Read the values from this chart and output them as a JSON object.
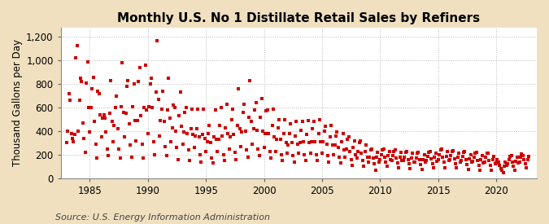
{
  "title": "Monthly U.S. No 1 Distillate Retail Sales by Refiners",
  "ylabel": "Thousand Gallons per Day",
  "source": "Source: U.S. Energy Information Administration",
  "figure_bg": "#f0e0c0",
  "plot_bg": "#ffffff",
  "marker_color": "#cc0000",
  "xlim": [
    1982.5,
    2023.5
  ],
  "ylim": [
    0,
    1280
  ],
  "yticks": [
    0,
    200,
    400,
    600,
    800,
    1000,
    1200
  ],
  "ytick_labels": [
    "0",
    "200",
    "400",
    "600",
    "800",
    "1,000",
    "1,200"
  ],
  "xticks": [
    1985,
    1990,
    1995,
    2000,
    2005,
    2010,
    2015,
    2020
  ],
  "title_fontsize": 11,
  "label_fontsize": 8.5,
  "source_fontsize": 8,
  "grid_color": "#bbbbbb",
  "grid_style": ":",
  "marker_size": 9,
  "data_points": [
    [
      1983.0,
      300
    ],
    [
      1983.1,
      400
    ],
    [
      1983.2,
      720
    ],
    [
      1983.3,
      660
    ],
    [
      1983.4,
      380
    ],
    [
      1983.5,
      340
    ],
    [
      1983.6,
      310
    ],
    [
      1983.7,
      370
    ],
    [
      1983.8,
      1020
    ],
    [
      1983.9,
      1130
    ],
    [
      1984.0,
      400
    ],
    [
      1984.1,
      660
    ],
    [
      1984.2,
      850
    ],
    [
      1984.3,
      820
    ],
    [
      1984.4,
      470
    ],
    [
      1984.5,
      340
    ],
    [
      1984.6,
      220
    ],
    [
      1984.7,
      810
    ],
    [
      1984.8,
      990
    ],
    [
      1984.9,
      600
    ],
    [
      1985.0,
      390
    ],
    [
      1985.1,
      600
    ],
    [
      1985.2,
      760
    ],
    [
      1985.3,
      860
    ],
    [
      1985.4,
      480
    ],
    [
      1985.5,
      290
    ],
    [
      1985.6,
      170
    ],
    [
      1985.7,
      740
    ],
    [
      1985.8,
      720
    ],
    [
      1985.9,
      540
    ],
    [
      1986.0,
      350
    ],
    [
      1986.1,
      510
    ],
    [
      1986.2,
      540
    ],
    [
      1986.3,
      510
    ],
    [
      1986.4,
      390
    ],
    [
      1986.5,
      250
    ],
    [
      1986.6,
      190
    ],
    [
      1986.7,
      550
    ],
    [
      1986.8,
      830
    ],
    [
      1986.9,
      480
    ],
    [
      1987.0,
      310
    ],
    [
      1987.1,
      450
    ],
    [
      1987.2,
      600
    ],
    [
      1987.3,
      700
    ],
    [
      1987.4,
      420
    ],
    [
      1987.5,
      250
    ],
    [
      1987.6,
      170
    ],
    [
      1987.7,
      610
    ],
    [
      1987.8,
      980
    ],
    [
      1987.9,
      560
    ],
    [
      1988.0,
      350
    ],
    [
      1988.1,
      550
    ],
    [
      1988.2,
      780
    ],
    [
      1988.3,
      830
    ],
    [
      1988.4,
      460
    ],
    [
      1988.5,
      280
    ],
    [
      1988.6,
      180
    ],
    [
      1988.7,
      610
    ],
    [
      1988.8,
      800
    ],
    [
      1988.9,
      490
    ],
    [
      1989.0,
      320
    ],
    [
      1989.1,
      490
    ],
    [
      1989.2,
      820
    ],
    [
      1989.3,
      940
    ],
    [
      1989.4,
      530
    ],
    [
      1989.5,
      290
    ],
    [
      1989.6,
      170
    ],
    [
      1989.7,
      600
    ],
    [
      1989.8,
      960
    ],
    [
      1989.9,
      580
    ],
    [
      1990.0,
      380
    ],
    [
      1990.1,
      610
    ],
    [
      1990.2,
      800
    ],
    [
      1990.3,
      850
    ],
    [
      1990.4,
      600
    ],
    [
      1990.5,
      310
    ],
    [
      1990.6,
      200
    ],
    [
      1990.7,
      730
    ],
    [
      1990.8,
      1170
    ],
    [
      1990.9,
      670
    ],
    [
      1991.0,
      360
    ],
    [
      1991.1,
      490
    ],
    [
      1991.2,
      590
    ],
    [
      1991.3,
      740
    ],
    [
      1991.4,
      480
    ],
    [
      1991.5,
      270
    ],
    [
      1991.6,
      190
    ],
    [
      1991.7,
      580
    ],
    [
      1991.8,
      850
    ],
    [
      1991.9,
      510
    ],
    [
      1992.0,
      310
    ],
    [
      1992.1,
      430
    ],
    [
      1992.2,
      620
    ],
    [
      1992.3,
      600
    ],
    [
      1992.4,
      400
    ],
    [
      1992.5,
      260
    ],
    [
      1992.6,
      160
    ],
    [
      1992.7,
      530
    ],
    [
      1992.8,
      730
    ],
    [
      1992.9,
      440
    ],
    [
      1993.0,
      290
    ],
    [
      1993.1,
      390
    ],
    [
      1993.2,
      560
    ],
    [
      1993.3,
      600
    ],
    [
      1993.4,
      380
    ],
    [
      1993.5,
      240
    ],
    [
      1993.6,
      150
    ],
    [
      1993.7,
      420
    ],
    [
      1993.8,
      590
    ],
    [
      1993.9,
      370
    ],
    [
      1994.0,
      260
    ],
    [
      1994.1,
      360
    ],
    [
      1994.2,
      420
    ],
    [
      1994.3,
      590
    ],
    [
      1994.4,
      350
    ],
    [
      1994.5,
      200
    ],
    [
      1994.6,
      140
    ],
    [
      1994.7,
      370
    ],
    [
      1994.8,
      590
    ],
    [
      1994.9,
      340
    ],
    [
      1995.0,
      230
    ],
    [
      1995.1,
      310
    ],
    [
      1995.2,
      380
    ],
    [
      1995.3,
      450
    ],
    [
      1995.4,
      300
    ],
    [
      1995.5,
      170
    ],
    [
      1995.6,
      130
    ],
    [
      1995.7,
      350
    ],
    [
      1995.8,
      580
    ],
    [
      1995.9,
      330
    ],
    [
      1996.0,
      230
    ],
    [
      1996.1,
      330
    ],
    [
      1996.2,
      450
    ],
    [
      1996.3,
      600
    ],
    [
      1996.4,
      360
    ],
    [
      1996.5,
      200
    ],
    [
      1996.6,
      150
    ],
    [
      1996.7,
      430
    ],
    [
      1996.8,
      630
    ],
    [
      1996.9,
      380
    ],
    [
      1997.0,
      250
    ],
    [
      1997.1,
      350
    ],
    [
      1997.2,
      500
    ],
    [
      1997.3,
      590
    ],
    [
      1997.4,
      370
    ],
    [
      1997.5,
      220
    ],
    [
      1997.6,
      160
    ],
    [
      1997.7,
      450
    ],
    [
      1997.8,
      760
    ],
    [
      1997.9,
      420
    ],
    [
      1998.0,
      270
    ],
    [
      1998.1,
      390
    ],
    [
      1998.2,
      560
    ],
    [
      1998.3,
      630
    ],
    [
      1998.4,
      400
    ],
    [
      1998.5,
      240
    ],
    [
      1998.6,
      180
    ],
    [
      1998.7,
      520
    ],
    [
      1998.8,
      830
    ],
    [
      1998.9,
      480
    ],
    [
      1999.0,
      290
    ],
    [
      1999.1,
      420
    ],
    [
      1999.2,
      580
    ],
    [
      1999.3,
      640
    ],
    [
      1999.4,
      410
    ],
    [
      1999.5,
      250
    ],
    [
      1999.6,
      190
    ],
    [
      1999.7,
      520
    ],
    [
      1999.8,
      680
    ],
    [
      1999.9,
      400
    ],
    [
      2000.0,
      260
    ],
    [
      2000.1,
      380
    ],
    [
      2000.2,
      570
    ],
    [
      2000.3,
      580
    ],
    [
      2000.4,
      380
    ],
    [
      2000.5,
      230
    ],
    [
      2000.6,
      170
    ],
    [
      2000.7,
      450
    ],
    [
      2000.8,
      590
    ],
    [
      2000.9,
      350
    ],
    [
      2001.0,
      230
    ],
    [
      2001.1,
      330
    ],
    [
      2001.2,
      430
    ],
    [
      2001.3,
      500
    ],
    [
      2001.4,
      330
    ],
    [
      2001.5,
      200
    ],
    [
      2001.6,
      150
    ],
    [
      2001.7,
      380
    ],
    [
      2001.8,
      500
    ],
    [
      2001.9,
      300
    ],
    [
      2002.0,
      210
    ],
    [
      2002.1,
      280
    ],
    [
      2002.2,
      380
    ],
    [
      2002.3,
      460
    ],
    [
      2002.4,
      300
    ],
    [
      2002.5,
      190
    ],
    [
      2002.6,
      140
    ],
    [
      2002.7,
      360
    ],
    [
      2002.8,
      480
    ],
    [
      2002.9,
      290
    ],
    [
      2003.0,
      210
    ],
    [
      2003.1,
      300
    ],
    [
      2003.2,
      410
    ],
    [
      2003.3,
      480
    ],
    [
      2003.4,
      310
    ],
    [
      2003.5,
      200
    ],
    [
      2003.6,
      150
    ],
    [
      2003.7,
      370
    ],
    [
      2003.8,
      490
    ],
    [
      2003.9,
      300
    ],
    [
      2004.0,
      210
    ],
    [
      2004.1,
      310
    ],
    [
      2004.2,
      420
    ],
    [
      2004.3,
      480
    ],
    [
      2004.4,
      310
    ],
    [
      2004.5,
      200
    ],
    [
      2004.6,
      150
    ],
    [
      2004.7,
      380
    ],
    [
      2004.8,
      500
    ],
    [
      2004.9,
      310
    ],
    [
      2005.0,
      210
    ],
    [
      2005.1,
      310
    ],
    [
      2005.2,
      400
    ],
    [
      2005.3,
      440
    ],
    [
      2005.4,
      290
    ],
    [
      2005.5,
      190
    ],
    [
      2005.6,
      140
    ],
    [
      2005.7,
      350
    ],
    [
      2005.8,
      450
    ],
    [
      2005.9,
      280
    ],
    [
      2006.0,
      200
    ],
    [
      2006.1,
      280
    ],
    [
      2006.2,
      360
    ],
    [
      2006.3,
      390
    ],
    [
      2006.4,
      260
    ],
    [
      2006.5,
      180
    ],
    [
      2006.6,
      130
    ],
    [
      2006.7,
      310
    ],
    [
      2006.8,
      380
    ],
    [
      2006.9,
      240
    ],
    [
      2007.0,
      180
    ],
    [
      2007.1,
      250
    ],
    [
      2007.2,
      330
    ],
    [
      2007.3,
      350
    ],
    [
      2007.4,
      230
    ],
    [
      2007.5,
      160
    ],
    [
      2007.6,
      110
    ],
    [
      2007.7,
      260
    ],
    [
      2007.8,
      320
    ],
    [
      2007.9,
      200
    ],
    [
      2008.0,
      170
    ],
    [
      2008.1,
      230
    ],
    [
      2008.2,
      300
    ],
    [
      2008.3,
      320
    ],
    [
      2008.4,
      210
    ],
    [
      2008.5,
      150
    ],
    [
      2008.6,
      100
    ],
    [
      2008.7,
      230
    ],
    [
      2008.8,
      280
    ],
    [
      2008.9,
      180
    ],
    [
      2009.0,
      140
    ],
    [
      2009.1,
      180
    ],
    [
      2009.2,
      240
    ],
    [
      2009.3,
      250
    ],
    [
      2009.4,
      170
    ],
    [
      2009.5,
      120
    ],
    [
      2009.6,
      70
    ],
    [
      2009.7,
      180
    ],
    [
      2009.8,
      220
    ],
    [
      2009.9,
      140
    ],
    [
      2010.0,
      160
    ],
    [
      2010.1,
      200
    ],
    [
      2010.2,
      240
    ],
    [
      2010.3,
      250
    ],
    [
      2010.4,
      180
    ],
    [
      2010.5,
      140
    ],
    [
      2010.6,
      100
    ],
    [
      2010.7,
      190
    ],
    [
      2010.8,
      230
    ],
    [
      2010.9,
      160
    ],
    [
      2011.0,
      150
    ],
    [
      2011.1,
      190
    ],
    [
      2011.2,
      230
    ],
    [
      2011.3,
      240
    ],
    [
      2011.4,
      170
    ],
    [
      2011.5,
      130
    ],
    [
      2011.6,
      90
    ],
    [
      2011.7,
      180
    ],
    [
      2011.8,
      220
    ],
    [
      2011.9,
      150
    ],
    [
      2012.0,
      150
    ],
    [
      2012.1,
      180
    ],
    [
      2012.2,
      220
    ],
    [
      2012.3,
      230
    ],
    [
      2012.4,
      160
    ],
    [
      2012.5,
      120
    ],
    [
      2012.6,
      80
    ],
    [
      2012.7,
      170
    ],
    [
      2012.8,
      210
    ],
    [
      2012.9,
      140
    ],
    [
      2013.0,
      140
    ],
    [
      2013.1,
      170
    ],
    [
      2013.2,
      210
    ],
    [
      2013.3,
      220
    ],
    [
      2013.4,
      155
    ],
    [
      2013.5,
      115
    ],
    [
      2013.6,
      75
    ],
    [
      2013.7,
      160
    ],
    [
      2013.8,
      200
    ],
    [
      2013.9,
      135
    ],
    [
      2014.0,
      150
    ],
    [
      2014.1,
      185
    ],
    [
      2014.2,
      220
    ],
    [
      2014.3,
      230
    ],
    [
      2014.4,
      165
    ],
    [
      2014.5,
      125
    ],
    [
      2014.6,
      85
    ],
    [
      2014.7,
      175
    ],
    [
      2014.8,
      215
    ],
    [
      2014.9,
      145
    ],
    [
      2015.0,
      160
    ],
    [
      2015.1,
      200
    ],
    [
      2015.2,
      240
    ],
    [
      2015.3,
      250
    ],
    [
      2015.4,
      175
    ],
    [
      2015.5,
      135
    ],
    [
      2015.6,
      90
    ],
    [
      2015.7,
      185
    ],
    [
      2015.8,
      225
    ],
    [
      2015.9,
      150
    ],
    [
      2016.0,
      155
    ],
    [
      2016.1,
      190
    ],
    [
      2016.2,
      230
    ],
    [
      2016.3,
      235
    ],
    [
      2016.4,
      165
    ],
    [
      2016.5,
      125
    ],
    [
      2016.6,
      85
    ],
    [
      2016.7,
      175
    ],
    [
      2016.8,
      210
    ],
    [
      2016.9,
      140
    ],
    [
      2017.0,
      150
    ],
    [
      2017.1,
      185
    ],
    [
      2017.2,
      220
    ],
    [
      2017.3,
      225
    ],
    [
      2017.4,
      155
    ],
    [
      2017.5,
      115
    ],
    [
      2017.6,
      75
    ],
    [
      2017.7,
      165
    ],
    [
      2017.8,
      200
    ],
    [
      2017.9,
      135
    ],
    [
      2018.0,
      145
    ],
    [
      2018.1,
      180
    ],
    [
      2018.2,
      215
    ],
    [
      2018.3,
      220
    ],
    [
      2018.4,
      150
    ],
    [
      2018.5,
      110
    ],
    [
      2018.6,
      70
    ],
    [
      2018.7,
      155
    ],
    [
      2018.8,
      190
    ],
    [
      2018.9,
      130
    ],
    [
      2019.0,
      140
    ],
    [
      2019.1,
      175
    ],
    [
      2019.2,
      210
    ],
    [
      2019.3,
      215
    ],
    [
      2019.4,
      150
    ],
    [
      2019.5,
      110
    ],
    [
      2019.6,
      70
    ],
    [
      2019.7,
      155
    ],
    [
      2019.8,
      185
    ],
    [
      2019.9,
      125
    ],
    [
      2020.0,
      130
    ],
    [
      2020.1,
      160
    ],
    [
      2020.2,
      140
    ],
    [
      2020.3,
      110
    ],
    [
      2020.4,
      80
    ],
    [
      2020.5,
      65
    ],
    [
      2020.6,
      50
    ],
    [
      2020.7,
      100
    ],
    [
      2020.8,
      140
    ],
    [
      2020.9,
      110
    ],
    [
      2021.0,
      120
    ],
    [
      2021.1,
      155
    ],
    [
      2021.2,
      185
    ],
    [
      2021.3,
      190
    ],
    [
      2021.4,
      140
    ],
    [
      2021.5,
      105
    ],
    [
      2021.6,
      70
    ],
    [
      2021.7,
      145
    ],
    [
      2021.8,
      180
    ],
    [
      2021.9,
      130
    ],
    [
      2022.0,
      140
    ],
    [
      2022.1,
      175
    ],
    [
      2022.2,
      205
    ],
    [
      2022.3,
      190
    ],
    [
      2022.4,
      155
    ],
    [
      2022.5,
      120
    ],
    [
      2022.6,
      85
    ],
    [
      2022.7,
      160
    ],
    [
      2022.8,
      185
    ]
  ]
}
